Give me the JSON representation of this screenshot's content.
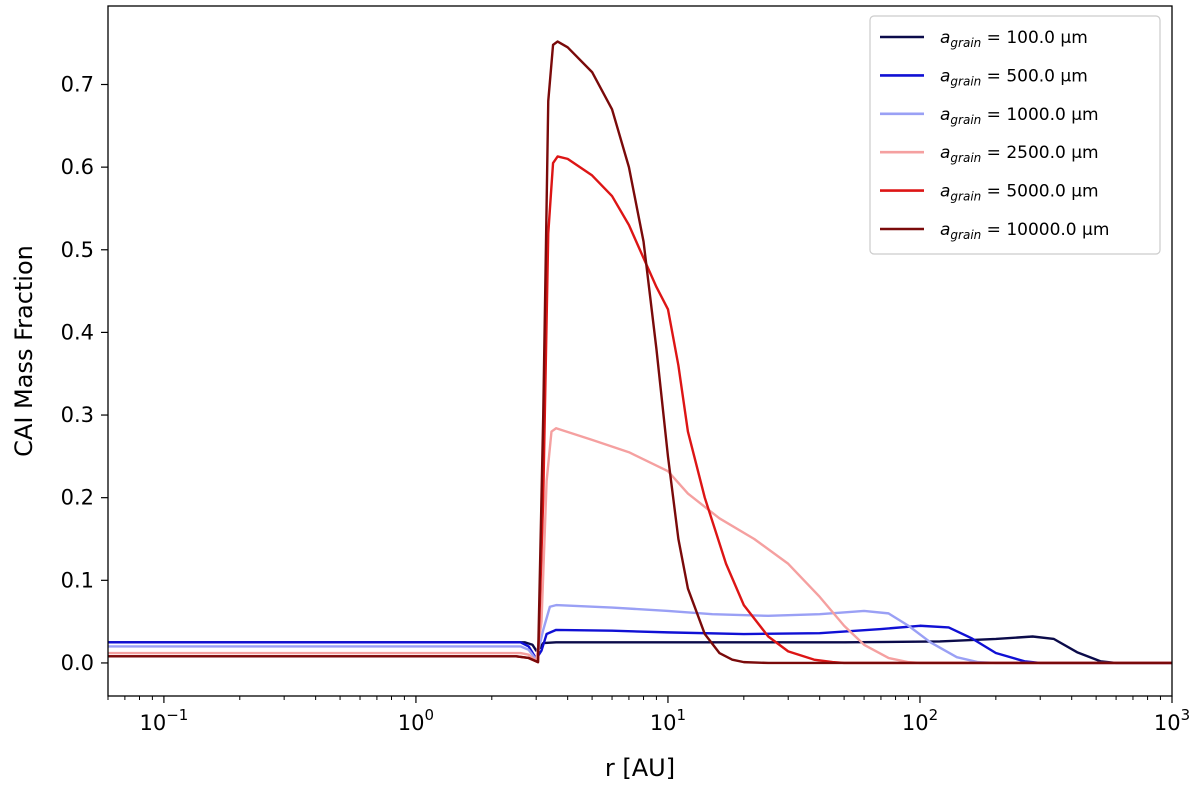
{
  "chart_data": {
    "type": "line",
    "xscale": "log",
    "xlim": [
      0.06,
      1000
    ],
    "ylim": [
      -0.04,
      0.795
    ],
    "xlabel": "r [AU]",
    "ylabel": "CAI Mass Fraction",
    "x_ticks": [
      {
        "value": 0.1,
        "base": "10",
        "exp": "−1"
      },
      {
        "value": 1,
        "base": "10",
        "exp": "0"
      },
      {
        "value": 10,
        "base": "10",
        "exp": "1"
      },
      {
        "value": 100,
        "base": "10",
        "exp": "2"
      },
      {
        "value": 1000,
        "base": "10",
        "exp": "3"
      }
    ],
    "y_ticks": [
      "0.0",
      "0.1",
      "0.2",
      "0.3",
      "0.4",
      "0.5",
      "0.6",
      "0.7"
    ],
    "grid": false,
    "legend_position": "top-right",
    "series": [
      {
        "name": "a_grain = 100.0 µm",
        "legend_symbol": "a",
        "legend_sub": "grain",
        "legend_value": "= 100.0 µm",
        "color": "#0b0b4a",
        "points": [
          [
            0.06,
            0.025
          ],
          [
            2.7,
            0.025
          ],
          [
            2.9,
            0.022
          ],
          [
            3.0,
            0.015
          ],
          [
            3.1,
            0.018
          ],
          [
            3.2,
            0.024
          ],
          [
            3.6,
            0.025
          ],
          [
            10,
            0.025
          ],
          [
            50,
            0.025
          ],
          [
            120,
            0.026
          ],
          [
            200,
            0.029
          ],
          [
            280,
            0.032
          ],
          [
            340,
            0.029
          ],
          [
            420,
            0.013
          ],
          [
            520,
            0.002
          ],
          [
            600,
            0.0
          ],
          [
            1000,
            0.0
          ]
        ]
      },
      {
        "name": "a_grain = 500.0 µm",
        "legend_symbol": "a",
        "legend_sub": "grain",
        "legend_value": "= 500.0 µm",
        "color": "#1010d4",
        "points": [
          [
            0.06,
            0.025
          ],
          [
            2.6,
            0.025
          ],
          [
            2.8,
            0.02
          ],
          [
            3.0,
            0.005
          ],
          [
            3.15,
            0.015
          ],
          [
            3.3,
            0.035
          ],
          [
            3.6,
            0.04
          ],
          [
            6,
            0.039
          ],
          [
            10,
            0.037
          ],
          [
            20,
            0.035
          ],
          [
            40,
            0.036
          ],
          [
            70,
            0.041
          ],
          [
            100,
            0.045
          ],
          [
            130,
            0.043
          ],
          [
            160,
            0.03
          ],
          [
            200,
            0.012
          ],
          [
            260,
            0.002
          ],
          [
            300,
            0.0
          ],
          [
            1000,
            0.0
          ]
        ]
      },
      {
        "name": "a_grain = 1000.0 µm",
        "legend_symbol": "a",
        "legend_sub": "grain",
        "legend_value": "= 1000.0 µm",
        "color": "#9aa0f5",
        "points": [
          [
            0.06,
            0.02
          ],
          [
            2.6,
            0.02
          ],
          [
            2.8,
            0.016
          ],
          [
            3.0,
            0.004
          ],
          [
            3.2,
            0.04
          ],
          [
            3.4,
            0.068
          ],
          [
            3.6,
            0.07
          ],
          [
            6,
            0.067
          ],
          [
            10,
            0.063
          ],
          [
            15,
            0.059
          ],
          [
            25,
            0.057
          ],
          [
            40,
            0.059
          ],
          [
            60,
            0.063
          ],
          [
            75,
            0.06
          ],
          [
            90,
            0.045
          ],
          [
            110,
            0.025
          ],
          [
            140,
            0.007
          ],
          [
            170,
            0.001
          ],
          [
            200,
            0.0
          ],
          [
            1000,
            0.0
          ]
        ]
      },
      {
        "name": "a_grain = 2500.0 µm",
        "legend_symbol": "a",
        "legend_sub": "grain",
        "legend_value": "= 2500.0 µm",
        "color": "#f5a0a0",
        "points": [
          [
            0.06,
            0.012
          ],
          [
            2.6,
            0.012
          ],
          [
            2.8,
            0.01
          ],
          [
            3.0,
            0.002
          ],
          [
            3.15,
            0.05
          ],
          [
            3.3,
            0.22
          ],
          [
            3.45,
            0.28
          ],
          [
            3.6,
            0.284
          ],
          [
            5,
            0.27
          ],
          [
            7,
            0.255
          ],
          [
            10,
            0.232
          ],
          [
            12,
            0.205
          ],
          [
            16,
            0.175
          ],
          [
            22,
            0.15
          ],
          [
            30,
            0.12
          ],
          [
            40,
            0.08
          ],
          [
            50,
            0.045
          ],
          [
            60,
            0.022
          ],
          [
            75,
            0.006
          ],
          [
            90,
            0.001
          ],
          [
            100,
            0.0
          ],
          [
            1000,
            0.0
          ]
        ]
      },
      {
        "name": "a_grain = 5000.0 µm",
        "legend_symbol": "a",
        "legend_sub": "grain",
        "legend_value": "= 5000.0 µm",
        "color": "#dd1515",
        "points": [
          [
            0.06,
            0.008
          ],
          [
            2.5,
            0.008
          ],
          [
            2.8,
            0.006
          ],
          [
            3.05,
            0.001
          ],
          [
            3.2,
            0.2
          ],
          [
            3.35,
            0.52
          ],
          [
            3.5,
            0.605
          ],
          [
            3.65,
            0.613
          ],
          [
            4,
            0.61
          ],
          [
            5,
            0.59
          ],
          [
            6,
            0.565
          ],
          [
            7,
            0.53
          ],
          [
            8,
            0.49
          ],
          [
            9,
            0.455
          ],
          [
            10,
            0.428
          ],
          [
            11,
            0.36
          ],
          [
            12,
            0.28
          ],
          [
            14,
            0.2
          ],
          [
            17,
            0.12
          ],
          [
            20,
            0.07
          ],
          [
            25,
            0.032
          ],
          [
            30,
            0.014
          ],
          [
            38,
            0.004
          ],
          [
            45,
            0.001
          ],
          [
            50,
            0.0
          ],
          [
            1000,
            0.0
          ]
        ]
      },
      {
        "name": "a_grain = 10000.0 µm",
        "legend_symbol": "a",
        "legend_sub": "grain",
        "legend_value": "= 10000.0 µm",
        "color": "#7a0a0a",
        "points": [
          [
            0.06,
            0.008
          ],
          [
            2.5,
            0.008
          ],
          [
            2.8,
            0.006
          ],
          [
            3.05,
            0.001
          ],
          [
            3.2,
            0.3
          ],
          [
            3.35,
            0.68
          ],
          [
            3.5,
            0.748
          ],
          [
            3.65,
            0.752
          ],
          [
            4,
            0.745
          ],
          [
            5,
            0.715
          ],
          [
            6,
            0.67
          ],
          [
            7,
            0.6
          ],
          [
            8,
            0.51
          ],
          [
            9,
            0.38
          ],
          [
            10,
            0.25
          ],
          [
            11,
            0.15
          ],
          [
            12,
            0.09
          ],
          [
            14,
            0.035
          ],
          [
            16,
            0.012
          ],
          [
            18,
            0.004
          ],
          [
            20,
            0.001
          ],
          [
            25,
            0.0
          ],
          [
            1000,
            0.0
          ]
        ]
      }
    ]
  }
}
